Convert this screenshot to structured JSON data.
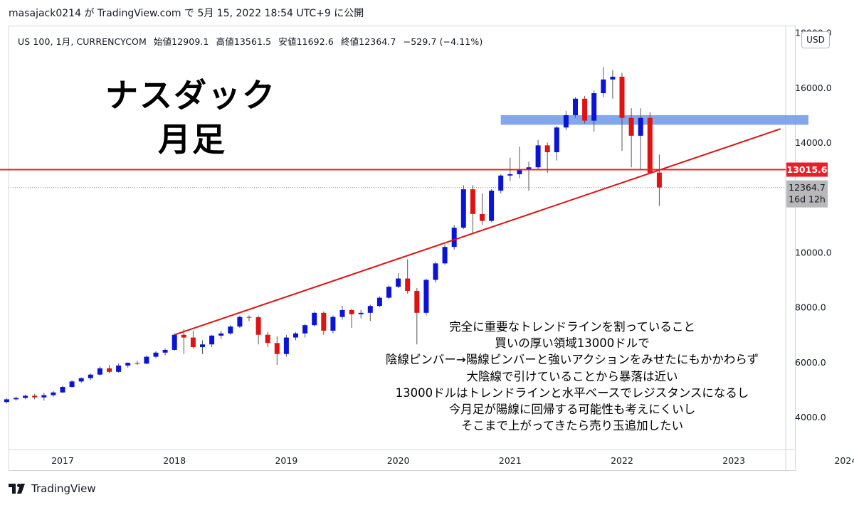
{
  "header": {
    "publisher_text": "masajack0214 が TradingView.com で 5月 15, 2022 18:54 UTC+9 に公開"
  },
  "legend": {
    "symbol": "US 100, 1月, CURRENCYCOM",
    "open": "始値12909.1",
    "high": "高値13561.5",
    "low": "安値11692.6",
    "close": "終値12364.7",
    "change": "−529.7 (−4.11%)"
  },
  "currency_button": "USD",
  "annotation_title": {
    "line1": "ナスダック",
    "line2": "月足"
  },
  "annotation_note": [
    "完全に重要なトレンドラインを割っていること",
    "買いの厚い領域13000ドルで",
    "陰線ピンバー→陽線ピンバーと強いアクションをみせたにもかかわらず",
    "大陰線で引けていることから暴落は近い",
    "13000ドルはトレンドラインと水平ベースでレジスタンスになるし",
    "今月足が陽線に回帰する可能性も考えにくいし",
    "そこまで上がってきたら売り玉追加したい"
  ],
  "footer": {
    "brand": "TradingView"
  },
  "colors": {
    "up": "#0a14d8",
    "down": "#e01212",
    "wick": "#555555",
    "hline": "#e8202a",
    "trendline": "#e01212",
    "zone": "#6f97e8",
    "price_label_bg": "#e8202a",
    "current_label_bg": "#b8b8b8",
    "axis_text": "#131722",
    "grid": "#f0f3fa"
  },
  "chart_data": {
    "type": "candlestick",
    "interval": "1月",
    "y_ticks": [
      4000,
      6000,
      8000,
      10000,
      12000,
      14000,
      16000,
      18000
    ],
    "y_tick_labels": [
      "4000.0",
      "6000.0",
      "8000.0",
      "10000.0",
      "",
      "14000.0",
      "16000.0",
      "18000.0"
    ],
    "x_ticks": [
      "2017",
      "2018",
      "2019",
      "2020",
      "2021",
      "2022",
      "2023",
      "2024"
    ],
    "ylim": [
      2800,
      18200
    ],
    "horizontal_line": {
      "value": 13015.6,
      "label": "13015.6"
    },
    "current_price": {
      "value": 12364.7,
      "label": "12364.7",
      "countdown": "16d 12h"
    },
    "resistance_zone": {
      "from_date": "2020-12",
      "to_date": "2023-09",
      "low": 14650,
      "high": 15000
    },
    "trendline": {
      "start": {
        "date": "2018-01",
        "value": 7000
      },
      "end": {
        "date": "2023-06",
        "value": 14500
      }
    },
    "candles": [
      {
        "date": "2016-06",
        "open": 4400,
        "high": 4600,
        "low": 4350,
        "close": 4550
      },
      {
        "date": "2016-07",
        "open": 4550,
        "high": 4700,
        "low": 4500,
        "close": 4650
      },
      {
        "date": "2016-08",
        "open": 4650,
        "high": 4750,
        "low": 4600,
        "close": 4700
      },
      {
        "date": "2016-09",
        "open": 4700,
        "high": 4820,
        "low": 4650,
        "close": 4780
      },
      {
        "date": "2016-10",
        "open": 4780,
        "high": 4850,
        "low": 4650,
        "close": 4720
      },
      {
        "date": "2016-11",
        "open": 4720,
        "high": 4880,
        "low": 4600,
        "close": 4800
      },
      {
        "date": "2016-12",
        "open": 4800,
        "high": 4950,
        "low": 4750,
        "close": 4900
      },
      {
        "date": "2017-01",
        "open": 4900,
        "high": 5150,
        "low": 4880,
        "close": 5100
      },
      {
        "date": "2017-02",
        "open": 5100,
        "high": 5350,
        "low": 5080,
        "close": 5300
      },
      {
        "date": "2017-03",
        "open": 5300,
        "high": 5450,
        "low": 5250,
        "close": 5420
      },
      {
        "date": "2017-04",
        "open": 5420,
        "high": 5600,
        "low": 5350,
        "close": 5550
      },
      {
        "date": "2017-05",
        "open": 5550,
        "high": 5850,
        "low": 5520,
        "close": 5780
      },
      {
        "date": "2017-06",
        "open": 5780,
        "high": 5900,
        "low": 5600,
        "close": 5650
      },
      {
        "date": "2017-07",
        "open": 5650,
        "high": 5950,
        "low": 5620,
        "close": 5880
      },
      {
        "date": "2017-08",
        "open": 5880,
        "high": 6000,
        "low": 5800,
        "close": 5980
      },
      {
        "date": "2017-09",
        "open": 5980,
        "high": 6050,
        "low": 5900,
        "close": 5950
      },
      {
        "date": "2017-10",
        "open": 5950,
        "high": 6250,
        "low": 5930,
        "close": 6200
      },
      {
        "date": "2017-11",
        "open": 6200,
        "high": 6400,
        "low": 6150,
        "close": 6350
      },
      {
        "date": "2017-12",
        "open": 6350,
        "high": 6500,
        "low": 6250,
        "close": 6450
      },
      {
        "date": "2018-01",
        "open": 6450,
        "high": 7050,
        "low": 6420,
        "close": 7000
      },
      {
        "date": "2018-02",
        "open": 7000,
        "high": 7200,
        "low": 6300,
        "close": 6900
      },
      {
        "date": "2018-03",
        "open": 6900,
        "high": 7150,
        "low": 6500,
        "close": 6550
      },
      {
        "date": "2018-04",
        "open": 6550,
        "high": 6800,
        "low": 6300,
        "close": 6650
      },
      {
        "date": "2018-05",
        "open": 6650,
        "high": 7000,
        "low": 6550,
        "close": 6970
      },
      {
        "date": "2018-06",
        "open": 6970,
        "high": 7150,
        "low": 6850,
        "close": 7050
      },
      {
        "date": "2018-07",
        "open": 7050,
        "high": 7350,
        "low": 7000,
        "close": 7300
      },
      {
        "date": "2018-08",
        "open": 7300,
        "high": 7700,
        "low": 7250,
        "close": 7650
      },
      {
        "date": "2018-09",
        "open": 7650,
        "high": 7700,
        "low": 7500,
        "close": 7640
      },
      {
        "date": "2018-10",
        "open": 7640,
        "high": 7700,
        "low": 6650,
        "close": 7000
      },
      {
        "date": "2018-11",
        "open": 7000,
        "high": 7100,
        "low": 6550,
        "close": 6700
      },
      {
        "date": "2018-12",
        "open": 6700,
        "high": 6950,
        "low": 5900,
        "close": 6300
      },
      {
        "date": "2019-01",
        "open": 6300,
        "high": 7000,
        "low": 6200,
        "close": 6900
      },
      {
        "date": "2019-02",
        "open": 6900,
        "high": 7100,
        "low": 6800,
        "close": 7050
      },
      {
        "date": "2019-03",
        "open": 7050,
        "high": 7400,
        "low": 6900,
        "close": 7350
      },
      {
        "date": "2019-04",
        "open": 7350,
        "high": 7850,
        "low": 7300,
        "close": 7800
      },
      {
        "date": "2019-05",
        "open": 7800,
        "high": 7850,
        "low": 7000,
        "close": 7150
      },
      {
        "date": "2019-06",
        "open": 7150,
        "high": 7700,
        "low": 7050,
        "close": 7650
      },
      {
        "date": "2019-07",
        "open": 7650,
        "high": 8050,
        "low": 7550,
        "close": 7900
      },
      {
        "date": "2019-08",
        "open": 7900,
        "high": 7950,
        "low": 7250,
        "close": 7750
      },
      {
        "date": "2019-09",
        "open": 7750,
        "high": 7900,
        "low": 7600,
        "close": 7800
      },
      {
        "date": "2019-10",
        "open": 7800,
        "high": 8100,
        "low": 7500,
        "close": 8050
      },
      {
        "date": "2019-11",
        "open": 8050,
        "high": 8400,
        "low": 8000,
        "close": 8350
      },
      {
        "date": "2019-12",
        "open": 8350,
        "high": 8800,
        "low": 8300,
        "close": 8750
      },
      {
        "date": "2020-01",
        "open": 8750,
        "high": 9250,
        "low": 8700,
        "close": 9050
      },
      {
        "date": "2020-02",
        "open": 9050,
        "high": 9750,
        "low": 8500,
        "close": 8600
      },
      {
        "date": "2020-03",
        "open": 8600,
        "high": 8700,
        "low": 6650,
        "close": 7800
      },
      {
        "date": "2020-04",
        "open": 7800,
        "high": 9050,
        "low": 7700,
        "close": 9000
      },
      {
        "date": "2020-05",
        "open": 9000,
        "high": 9650,
        "low": 8900,
        "close": 9600
      },
      {
        "date": "2020-06",
        "open": 9600,
        "high": 10300,
        "low": 9550,
        "close": 10200
      },
      {
        "date": "2020-07",
        "open": 10200,
        "high": 11000,
        "low": 10100,
        "close": 10900
      },
      {
        "date": "2020-08",
        "open": 10900,
        "high": 12450,
        "low": 10850,
        "close": 12300
      },
      {
        "date": "2020-09",
        "open": 12300,
        "high": 12450,
        "low": 10700,
        "close": 11400
      },
      {
        "date": "2020-10",
        "open": 11400,
        "high": 12150,
        "low": 11000,
        "close": 11150
      },
      {
        "date": "2020-11",
        "open": 11150,
        "high": 12300,
        "low": 11100,
        "close": 12250
      },
      {
        "date": "2020-12",
        "open": 12250,
        "high": 12850,
        "low": 12150,
        "close": 12800
      },
      {
        "date": "2021-01",
        "open": 12800,
        "high": 13450,
        "low": 12600,
        "close": 12850
      },
      {
        "date": "2021-02",
        "open": 12850,
        "high": 13850,
        "low": 12700,
        "close": 13000
      },
      {
        "date": "2021-03",
        "open": 13000,
        "high": 13300,
        "low": 12250,
        "close": 13100
      },
      {
        "date": "2021-04",
        "open": 13100,
        "high": 14100,
        "low": 13000,
        "close": 13900
      },
      {
        "date": "2021-05",
        "open": 13900,
        "high": 14000,
        "low": 12900,
        "close": 13650
      },
      {
        "date": "2021-06",
        "open": 13650,
        "high": 14600,
        "low": 13350,
        "close": 14550
      },
      {
        "date": "2021-07",
        "open": 14550,
        "high": 15150,
        "low": 14450,
        "close": 15000
      },
      {
        "date": "2021-08",
        "open": 15000,
        "high": 15650,
        "low": 14900,
        "close": 15600
      },
      {
        "date": "2021-09",
        "open": 15600,
        "high": 15700,
        "low": 14700,
        "close": 14800
      },
      {
        "date": "2021-10",
        "open": 14800,
        "high": 15900,
        "low": 14400,
        "close": 15800
      },
      {
        "date": "2021-11",
        "open": 15800,
        "high": 16750,
        "low": 15650,
        "close": 16300
      },
      {
        "date": "2021-12",
        "open": 16300,
        "high": 16650,
        "low": 15600,
        "close": 16400
      },
      {
        "date": "2022-01",
        "open": 16400,
        "high": 16550,
        "low": 13700,
        "close": 14900
      },
      {
        "date": "2022-02",
        "open": 14900,
        "high": 15250,
        "low": 13100,
        "close": 14250
      },
      {
        "date": "2022-03",
        "open": 14250,
        "high": 15250,
        "low": 13000,
        "close": 14900
      },
      {
        "date": "2022-04",
        "open": 14900,
        "high": 15100,
        "low": 12950,
        "close": 12900
      },
      {
        "date": "2022-05",
        "open": 12909.1,
        "high": 13561.5,
        "low": 11692.6,
        "close": 12364.7
      }
    ]
  }
}
